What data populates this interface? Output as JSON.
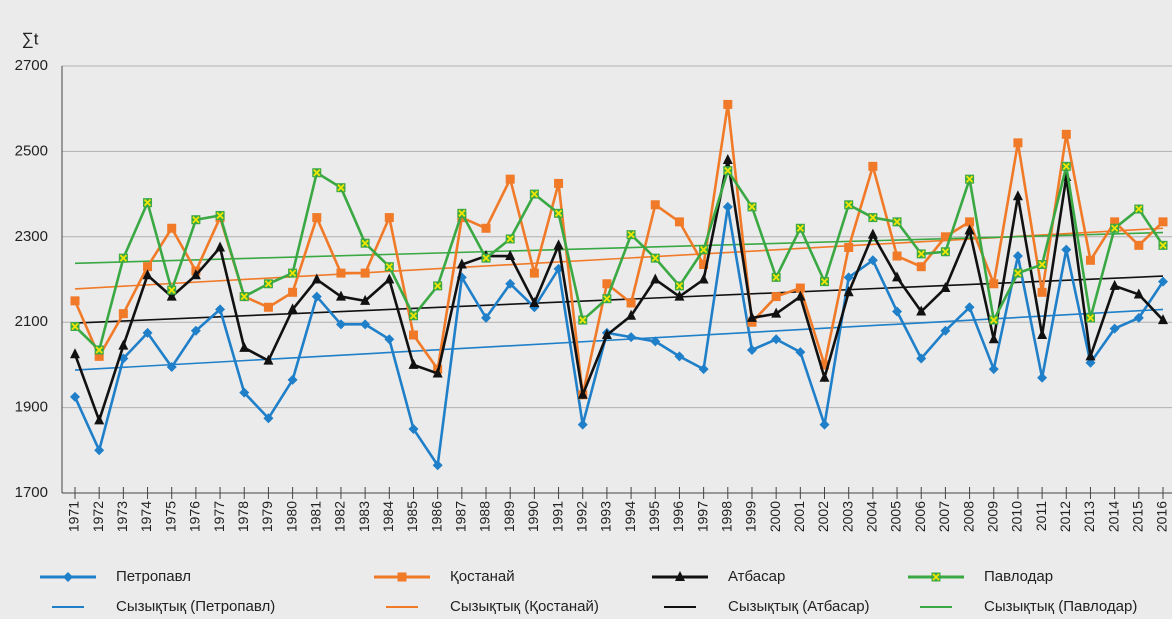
{
  "chart_data": {
    "type": "line",
    "y_label": "∑t",
    "categories": [
      "1971",
      "1972",
      "1973",
      "1974",
      "1975",
      "1976",
      "1977",
      "1978",
      "1979",
      "1980",
      "1981",
      "1982",
      "1983",
      "1984",
      "1985",
      "1986",
      "1987",
      "1988",
      "1989",
      "1990",
      "1991",
      "1992",
      "1993",
      "1994",
      "1995",
      "1996",
      "1997",
      "1998",
      "1999",
      "2000",
      "2001",
      "2002",
      "2003",
      "2004",
      "2005",
      "2006",
      "2007",
      "2008",
      "2009",
      "2010",
      "2011",
      "2012",
      "2013",
      "2014",
      "2015",
      "2016"
    ],
    "ylim": [
      1700,
      2700
    ],
    "yticks": [
      1700,
      1900,
      2100,
      2300,
      2500,
      2700
    ],
    "grid": true,
    "series": [
      {
        "name": "Петропавл",
        "color": "#1f7fc8",
        "marker": "diamond",
        "values": [
          1925,
          1800,
          2015,
          2075,
          1995,
          2080,
          2130,
          1935,
          1875,
          1965,
          2160,
          2095,
          2095,
          2060,
          1850,
          1765,
          2205,
          2110,
          2190,
          2135,
          2225,
          1860,
          2075,
          2065,
          2055,
          2020,
          1990,
          2370,
          2035,
          2060,
          2030,
          1860,
          2205,
          2245,
          2125,
          2015,
          2080,
          2135,
          1990,
          2255,
          1970,
          2270,
          2005,
          2085,
          2110,
          2195
        ]
      },
      {
        "name": "Қостанай",
        "color": "#f07a28",
        "marker": "square",
        "values": [
          2150,
          2020,
          2120,
          2230,
          2320,
          2220,
          2345,
          2160,
          2135,
          2170,
          2345,
          2215,
          2215,
          2345,
          2070,
          1990,
          2345,
          2320,
          2435,
          2215,
          2425,
          1930,
          2190,
          2145,
          2375,
          2335,
          2235,
          2610,
          2100,
          2160,
          2180,
          2000,
          2275,
          2465,
          2255,
          2230,
          2300,
          2335,
          2190,
          2520,
          2170,
          2540,
          2245,
          2335,
          2280,
          2335
        ]
      },
      {
        "name": "Атбасар",
        "color": "#111111",
        "marker": "triangle",
        "values": [
          2025,
          1870,
          2045,
          2210,
          2160,
          2210,
          2275,
          2040,
          2010,
          2130,
          2200,
          2160,
          2150,
          2200,
          2000,
          1980,
          2235,
          2255,
          2255,
          2145,
          2280,
          1930,
          2070,
          2115,
          2200,
          2160,
          2200,
          2480,
          2110,
          2120,
          2160,
          1970,
          2170,
          2305,
          2205,
          2125,
          2180,
          2315,
          2060,
          2395,
          2070,
          2440,
          2020,
          2185,
          2165,
          2105
        ]
      },
      {
        "name": "Павлодар",
        "color": "#3aa843",
        "marker": "xsquare",
        "values": [
          2090,
          2035,
          2250,
          2380,
          2175,
          2340,
          2350,
          2160,
          2190,
          2215,
          2450,
          2415,
          2285,
          2230,
          2115,
          2185,
          2355,
          2250,
          2295,
          2400,
          2355,
          2105,
          2155,
          2305,
          2250,
          2185,
          2270,
          2455,
          2370,
          2205,
          2320,
          2195,
          2375,
          2345,
          2335,
          2260,
          2265,
          2435,
          2105,
          2215,
          2235,
          2465,
          2110,
          2320,
          2365,
          2280
        ]
      }
    ],
    "trendlines": [
      {
        "name": "Сызықтық (Петропавл)",
        "color": "#1f7fc8",
        "values": [
          1988,
          2130
        ]
      },
      {
        "name": "Сызықтық (Қостанай)",
        "color": "#f07a28",
        "values": [
          2178,
          2320
        ]
      },
      {
        "name": "Сызықтық (Атбасар)",
        "color": "#111111",
        "values": [
          2098,
          2208
        ]
      },
      {
        "name": "Сызықтық (Павлодар)",
        "color": "#3aa843",
        "values": [
          2238,
          2310
        ]
      }
    ]
  }
}
